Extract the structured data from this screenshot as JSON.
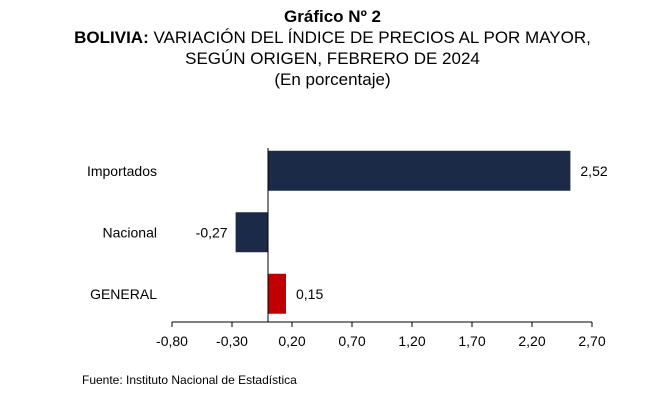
{
  "title": {
    "line1": "Gráfico Nº 2",
    "line2_bold": "BOLIVIA:",
    "line2_rest": " VARIACIÓN DEL ÍNDICE DE PRECIOS AL POR MAYOR,",
    "line3": "SEGÚN ORIGEN, FEBRERO DE 2024",
    "line4": "(En porcentaje)"
  },
  "chart_data": {
    "type": "bar",
    "orientation": "horizontal",
    "categories": [
      "Importados",
      "Nacional",
      "GENERAL"
    ],
    "values": [
      2.52,
      -0.27,
      0.15
    ],
    "data_labels": [
      "2,52",
      "-0,27",
      "0,15"
    ],
    "bar_colors": [
      "#1b2a47",
      "#1b2a47",
      "#c00000"
    ],
    "xlim": [
      -0.8,
      2.7
    ],
    "xticks": [
      -0.8,
      -0.3,
      0.2,
      0.7,
      1.2,
      1.7,
      2.2,
      2.7
    ],
    "xtick_labels": [
      "-0,80",
      "-0,30",
      "0,20",
      "0,70",
      "1,20",
      "1,70",
      "2,20",
      "2,70"
    ],
    "grid": false,
    "legend": "none"
  },
  "source": "Fuente: Instituto Nacional de Estadística"
}
